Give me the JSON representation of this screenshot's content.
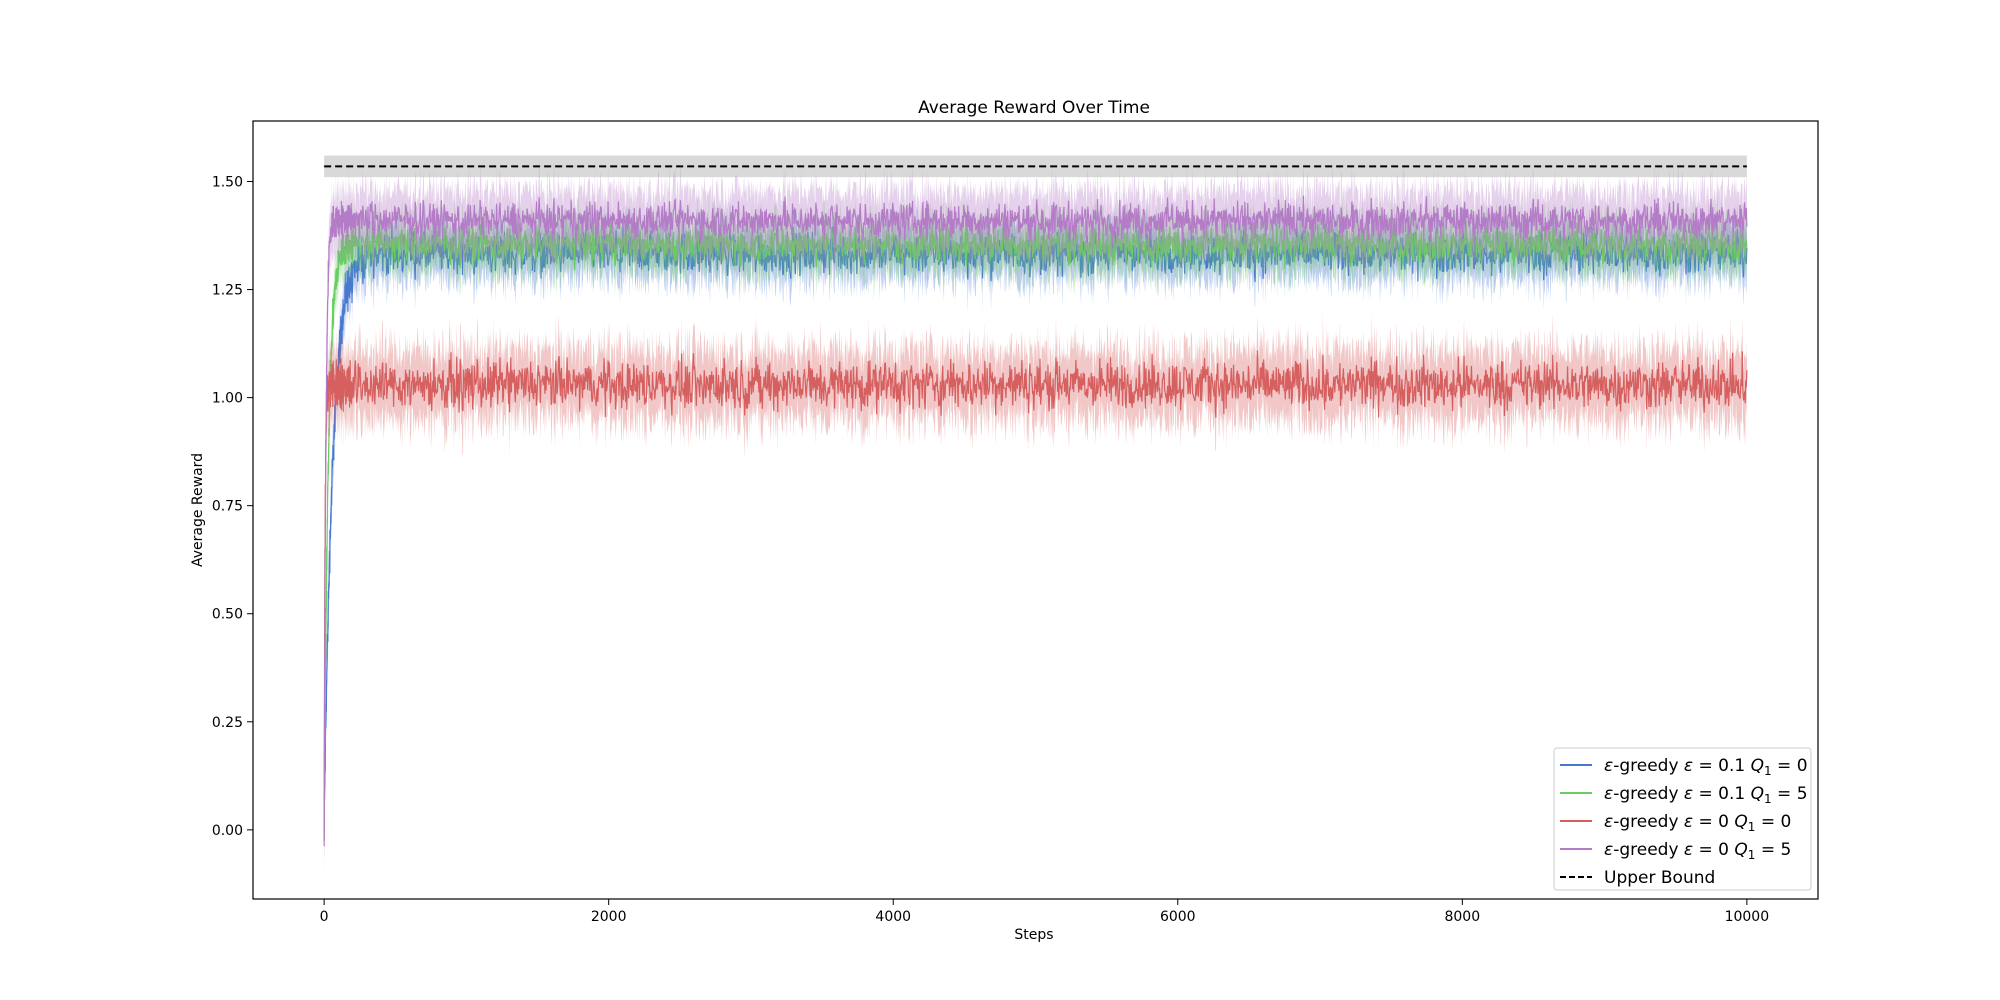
{
  "chart_data": {
    "type": "line",
    "title": "Average Reward Over Time",
    "xlabel": "Steps",
    "ylabel": "Average Reward",
    "xlim": [
      -500,
      10500
    ],
    "ylim": [
      -0.16,
      1.64
    ],
    "x_ticks": [
      0,
      2000,
      4000,
      6000,
      8000,
      10000
    ],
    "y_ticks": [
      0.0,
      0.25,
      0.5,
      0.75,
      1.0,
      1.25,
      1.5
    ],
    "x_tick_labels": [
      "0",
      "2000",
      "4000",
      "6000",
      "8000",
      "10000"
    ],
    "y_tick_labels": [
      "0.00",
      "0.25",
      "0.50",
      "0.75",
      "1.00",
      "1.25",
      "1.50"
    ],
    "grid": false,
    "legend_position": "bottom-right",
    "x_max_step": 10000,
    "series": [
      {
        "name": "ε-greedy ε = 0.1 Q₁ = 0",
        "legend_parts": [
          "ε",
          "-greedy ",
          "ε",
          " = 0.1 ",
          "Q",
          "1",
          " = 0"
        ],
        "color": "#4878d0",
        "start_value": 0.0,
        "plateau": 1.335,
        "rise_steps": 60,
        "line_noise": 0.035,
        "band_halfwidth": 0.06
      },
      {
        "name": "ε-greedy ε = 0.1 Q₁ = 5",
        "legend_parts": [
          "ε",
          "-greedy ",
          "ε",
          " = 0.1 ",
          "Q",
          "1",
          " = 5"
        ],
        "color": "#6acc64",
        "start_value": 0.0,
        "plateau": 1.355,
        "rise_steps": 30,
        "line_noise": 0.03,
        "band_halfwidth": 0.06
      },
      {
        "name": "ε-greedy ε = 0 Q₁ = 0",
        "legend_parts": [
          "ε",
          "-greedy ",
          "ε",
          " = 0 ",
          "Q",
          "1",
          " = 0"
        ],
        "color": "#d65f5f",
        "start_value": 0.0,
        "plateau": 1.03,
        "rise_steps": 6,
        "line_noise": 0.04,
        "band_halfwidth": 0.08
      },
      {
        "name": "ε-greedy ε = 0 Q₁ = 5",
        "legend_parts": [
          "ε",
          "-greedy ",
          "ε",
          " = 0 ",
          "Q",
          "1",
          " = 5"
        ],
        "color": "#b47cc7",
        "start_value": -0.05,
        "plateau": 1.41,
        "rise_steps": 12,
        "line_noise": 0.03,
        "band_halfwidth": 0.07
      },
      {
        "name": "Upper Bound",
        "legend_parts": [
          "Upper Bound"
        ],
        "color": "#000000",
        "dashed": true,
        "value": 1.535,
        "band": [
          1.51,
          1.56
        ]
      }
    ]
  }
}
